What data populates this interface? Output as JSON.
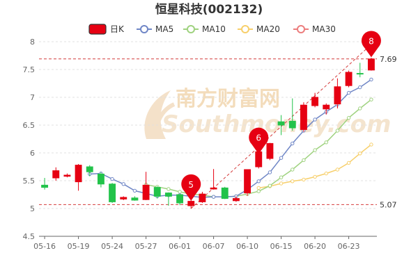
{
  "chart_data": {
    "type": "candlestick",
    "title": "恒星科技(002132)",
    "dates": [
      "05-16",
      "05-17",
      "05-18",
      "05-19",
      "05-20",
      "05-23",
      "05-24",
      "05-25",
      "05-26",
      "05-27",
      "05-30",
      "05-31",
      "06-01",
      "06-02",
      "06-06",
      "06-07",
      "06-08",
      "06-09",
      "06-10",
      "06-13",
      "06-14",
      "06-15",
      "06-16",
      "06-17",
      "06-20",
      "06-21",
      "06-22",
      "06-23",
      "06-24",
      "06-27"
    ],
    "x_tick_labels": [
      "05-16",
      "05-19",
      "05-24",
      "05-27",
      "06-01",
      "06-07",
      "06-10",
      "06-15",
      "06-20",
      "06-23"
    ],
    "x_tick_index": [
      0,
      3,
      6,
      9,
      12,
      15,
      18,
      21,
      24,
      27
    ],
    "ohlc": [
      [
        5.42,
        5.38,
        5.55,
        5.34
      ],
      [
        5.55,
        5.68,
        5.74,
        5.5
      ],
      [
        5.58,
        5.6,
        5.63,
        5.56
      ],
      [
        5.48,
        5.78,
        5.8,
        5.32
      ],
      [
        5.75,
        5.66,
        5.78,
        5.58
      ],
      [
        5.62,
        5.44,
        5.65,
        5.38
      ],
      [
        5.44,
        5.12,
        5.46,
        5.1
      ],
      [
        5.17,
        5.2,
        5.22,
        5.15
      ],
      [
        5.19,
        5.15,
        5.22,
        5.14
      ],
      [
        5.16,
        5.42,
        5.66,
        5.15
      ],
      [
        5.38,
        5.22,
        5.4,
        5.18
      ],
      [
        5.28,
        5.22,
        5.29,
        5.05
      ],
      [
        5.25,
        5.1,
        5.26,
        5.06
      ],
      [
        5.05,
        5.13,
        5.25,
        5.0
      ],
      [
        5.12,
        5.26,
        5.3,
        5.1
      ],
      [
        5.35,
        5.37,
        5.71,
        5.34
      ],
      [
        5.37,
        5.18,
        5.39,
        5.17
      ],
      [
        5.14,
        5.18,
        5.22,
        5.12
      ],
      [
        5.28,
        5.7,
        5.7,
        5.23
      ],
      [
        5.75,
        6.02,
        6.02,
        5.72
      ],
      [
        5.9,
        6.17,
        6.18,
        5.87
      ],
      [
        6.56,
        6.5,
        6.68,
        6.32
      ],
      [
        6.57,
        6.45,
        6.98,
        6.4
      ],
      [
        6.42,
        6.86,
        6.91,
        6.38
      ],
      [
        6.85,
        7.0,
        7.08,
        6.82
      ],
      [
        6.79,
        6.86,
        6.89,
        6.69
      ],
      [
        6.88,
        7.19,
        7.34,
        6.8
      ],
      [
        7.21,
        7.45,
        7.48,
        7.18
      ],
      [
        7.43,
        7.42,
        7.62,
        7.36
      ],
      [
        7.49,
        7.69,
        7.71,
        7.48
      ]
    ],
    "ma5": [
      null,
      null,
      null,
      null,
      5.62,
      5.63,
      5.53,
      5.44,
      5.32,
      5.27,
      5.22,
      5.24,
      5.24,
      5.22,
      5.2,
      5.21,
      5.21,
      5.22,
      5.34,
      5.49,
      5.65,
      5.91,
      6.17,
      6.4,
      6.6,
      6.74,
      6.87,
      7.08,
      7.18,
      7.32
    ],
    "ma10": [
      null,
      null,
      null,
      null,
      null,
      null,
      null,
      null,
      null,
      5.43,
      5.39,
      5.35,
      5.3,
      5.26,
      5.24,
      5.21,
      5.21,
      5.22,
      5.26,
      5.31,
      5.41,
      5.56,
      5.7,
      5.87,
      6.05,
      6.19,
      6.4,
      6.63,
      6.8,
      6.96
    ],
    "ma20": [
      null,
      null,
      null,
      null,
      null,
      null,
      null,
      null,
      null,
      null,
      null,
      null,
      null,
      null,
      null,
      null,
      null,
      null,
      null,
      5.37,
      5.4,
      5.45,
      5.49,
      5.52,
      5.57,
      5.63,
      5.7,
      5.82,
      5.99,
      6.15
    ],
    "ma30": [],
    "ylim": [
      4.5,
      8.0
    ],
    "y_ticks": [
      4.5,
      5,
      5.5,
      6,
      6.5,
      7,
      7.5,
      8
    ],
    "y_tick_labels": [
      "4.5",
      "5",
      "5.5",
      "6",
      "6.5",
      "7",
      "7.5",
      "8"
    ],
    "ref_lines": [
      {
        "value": 7.69,
        "label": "7.69"
      },
      {
        "value": 5.07,
        "label": "5.07"
      }
    ],
    "markers": [
      {
        "index": 13,
        "price": 5.14,
        "label": "5"
      },
      {
        "index": 19,
        "price": 5.98,
        "label": "6"
      },
      {
        "index": 29,
        "price": 7.72,
        "label": "8"
      }
    ],
    "trend_line": {
      "from_index": 13,
      "from_price": 5.0,
      "to_index": 29,
      "to_price": 7.95
    },
    "legend": [
      {
        "key": "k",
        "label": "日K"
      },
      {
        "key": "ma5",
        "label": "MA5"
      },
      {
        "key": "ma10",
        "label": "MA10"
      },
      {
        "key": "ma20",
        "label": "MA20"
      },
      {
        "key": "ma30",
        "label": "MA30"
      }
    ],
    "legend_placement": "top-center",
    "grid": "horizontal-dashed",
    "colors": {
      "up": "#e60012",
      "down": "#22c34a",
      "ma5": "#6f86c6",
      "ma10": "#9fd27f",
      "ma20": "#f7cf6a",
      "ma30": "#ec7d7d",
      "marker": "#e60012",
      "ref": "#d43a3a",
      "grid": "#e0e0e0",
      "axis": "#666666"
    }
  },
  "watermark": {
    "cn": "南方财富网",
    "en": "Southmoney.com"
  }
}
